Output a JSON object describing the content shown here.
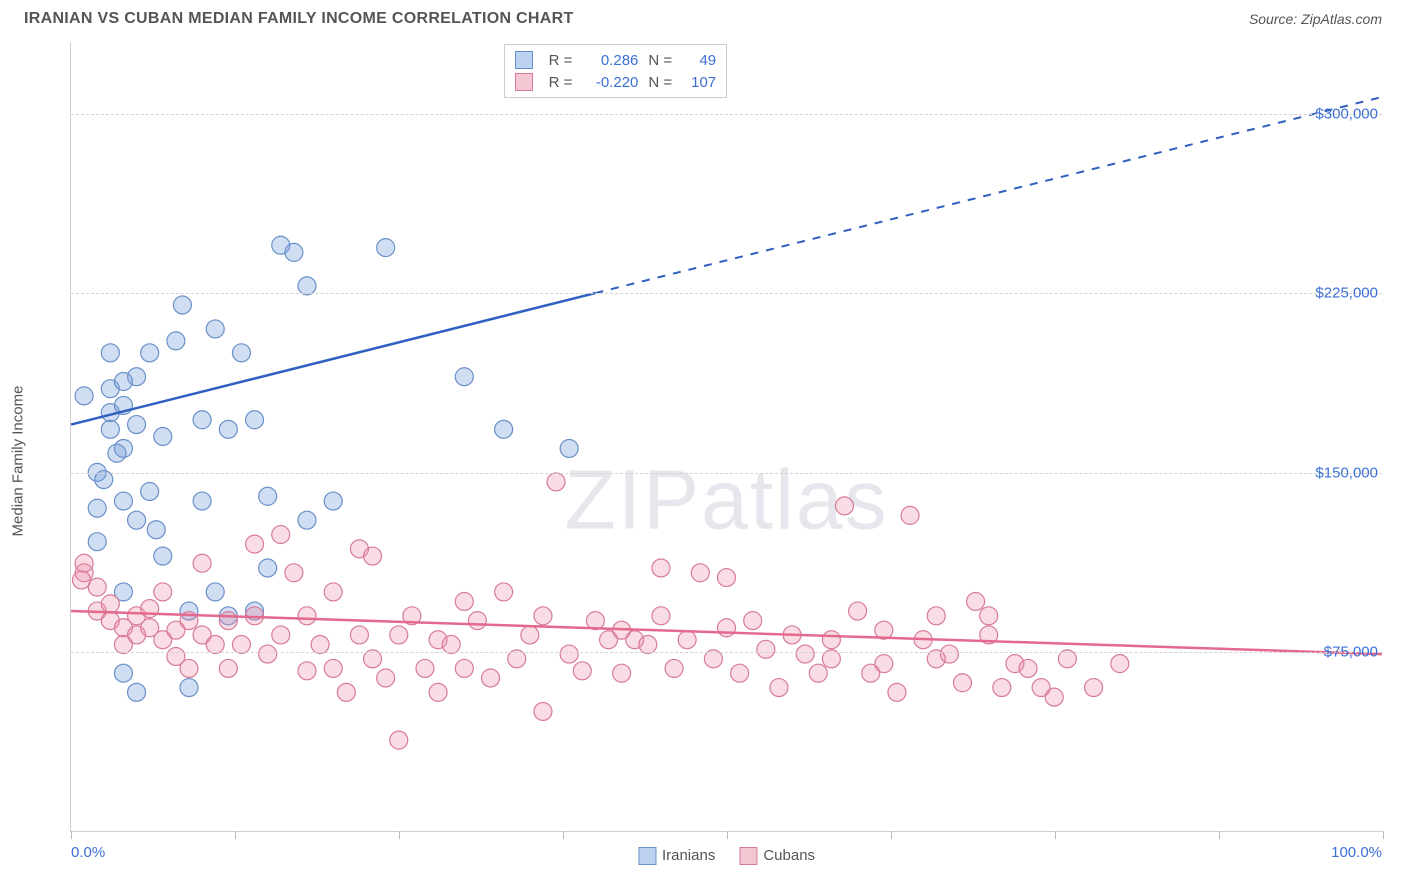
{
  "title": "IRANIAN VS CUBAN MEDIAN FAMILY INCOME CORRELATION CHART",
  "source_label": "Source: ZipAtlas.com",
  "watermark": {
    "bold": "ZIP",
    "rest": "atlas"
  },
  "chart": {
    "type": "scatter",
    "background_color": "#ffffff",
    "grid_color": "#d4d4d4",
    "axis_color": "#cfcfcf",
    "ylabel": "Median Family Income",
    "ylabel_color": "#555555",
    "ylabel_fontsize": 15,
    "xlim": [
      0,
      100
    ],
    "ylim": [
      0,
      330000
    ],
    "ytick_values": [
      75000,
      150000,
      225000,
      300000
    ],
    "ytick_labels": [
      "$75,000",
      "$150,000",
      "$225,000",
      "$300,000"
    ],
    "ytick_color": "#3b6fd6",
    "xtick_values": [
      0,
      12.5,
      25,
      37.5,
      50,
      62.5,
      75,
      87.5,
      100
    ],
    "xaxis_end_labels": {
      "left": "0.0%",
      "right": "100.0%",
      "color": "#3b6fd6"
    },
    "series": [
      {
        "name": "Iranians",
        "marker_fill": "rgba(120,160,220,0.35)",
        "marker_stroke": "#6a90c8",
        "swatch_fill": "#bcd2ef",
        "swatch_border": "#6a90c8",
        "line_color": "#2f5fc0",
        "R": "0.286",
        "N": "49",
        "trend": {
          "x1": 0,
          "y1": 170000,
          "x2_solid": 40,
          "y2_solid": 225000,
          "x2": 100,
          "y2": 307000
        },
        "marker_radius": 9,
        "points": [
          [
            4,
            100000
          ],
          [
            2,
            135000
          ],
          [
            2,
            150000
          ],
          [
            3,
            168000
          ],
          [
            3,
            175000
          ],
          [
            3,
            185000
          ],
          [
            4,
            160000
          ],
          [
            4,
            178000
          ],
          [
            5,
            170000
          ],
          [
            5,
            190000
          ],
          [
            8.5,
            220000
          ],
          [
            6,
            200000
          ],
          [
            6,
            142000
          ],
          [
            7,
            165000
          ],
          [
            7,
            115000
          ],
          [
            8,
            205000
          ],
          [
            9,
            92000
          ],
          [
            4,
            138000
          ],
          [
            4,
            188000
          ],
          [
            5,
            130000
          ],
          [
            3,
            200000
          ],
          [
            11,
            210000
          ],
          [
            6.5,
            126000
          ],
          [
            2,
            121000
          ],
          [
            1,
            182000
          ],
          [
            2.5,
            147000
          ],
          [
            3.5,
            158000
          ],
          [
            10,
            172000
          ],
          [
            10,
            138000
          ],
          [
            12,
            168000
          ],
          [
            12,
            90000
          ],
          [
            13,
            200000
          ],
          [
            14,
            172000
          ],
          [
            16,
            245000
          ],
          [
            17,
            242000
          ],
          [
            18,
            130000
          ],
          [
            15,
            140000
          ],
          [
            15,
            110000
          ],
          [
            5,
            58000
          ],
          [
            9,
            60000
          ],
          [
            20,
            138000
          ],
          [
            18,
            228000
          ],
          [
            24,
            244000
          ],
          [
            30,
            190000
          ],
          [
            33,
            168000
          ],
          [
            38,
            160000
          ],
          [
            14,
            92000
          ],
          [
            11,
            100000
          ],
          [
            4,
            66000
          ]
        ]
      },
      {
        "name": "Cubans",
        "marker_fill": "rgba(235,140,165,0.30)",
        "marker_stroke": "#d87b98",
        "swatch_fill": "#f3c7d2",
        "swatch_border": "#d87b98",
        "line_color": "#e36a8e",
        "R": "-0.220",
        "N": "107",
        "trend": {
          "x1": 0,
          "y1": 92000,
          "x2_solid": 100,
          "y2_solid": 74000,
          "x2": 100,
          "y2": 74000
        },
        "marker_radius": 9,
        "points": [
          [
            1,
            108000
          ],
          [
            1,
            112000
          ],
          [
            0.8,
            105000
          ],
          [
            2,
            102000
          ],
          [
            2,
            92000
          ],
          [
            3,
            88000
          ],
          [
            3,
            95000
          ],
          [
            4,
            85000
          ],
          [
            4,
            78000
          ],
          [
            5,
            90000
          ],
          [
            5,
            82000
          ],
          [
            6,
            85000
          ],
          [
            6,
            93000
          ],
          [
            7,
            80000
          ],
          [
            7,
            100000
          ],
          [
            8,
            84000
          ],
          [
            8,
            73000
          ],
          [
            9,
            88000
          ],
          [
            9,
            68000
          ],
          [
            10,
            82000
          ],
          [
            10,
            112000
          ],
          [
            11,
            78000
          ],
          [
            12,
            88000
          ],
          [
            12,
            68000
          ],
          [
            13,
            78000
          ],
          [
            14,
            90000
          ],
          [
            14,
            120000
          ],
          [
            15,
            74000
          ],
          [
            16,
            82000
          ],
          [
            16,
            124000
          ],
          [
            17,
            108000
          ],
          [
            18,
            67000
          ],
          [
            18,
            90000
          ],
          [
            19,
            78000
          ],
          [
            20,
            100000
          ],
          [
            20,
            68000
          ],
          [
            21,
            58000
          ],
          [
            22,
            82000
          ],
          [
            22,
            118000
          ],
          [
            23,
            115000
          ],
          [
            23,
            72000
          ],
          [
            24,
            64000
          ],
          [
            25,
            82000
          ],
          [
            25,
            38000
          ],
          [
            26,
            90000
          ],
          [
            27,
            68000
          ],
          [
            28,
            58000
          ],
          [
            28,
            80000
          ],
          [
            29,
            78000
          ],
          [
            30,
            96000
          ],
          [
            30,
            68000
          ],
          [
            31,
            88000
          ],
          [
            32,
            64000
          ],
          [
            33,
            100000
          ],
          [
            34,
            72000
          ],
          [
            35,
            82000
          ],
          [
            36,
            90000
          ],
          [
            36,
            50000
          ],
          [
            37,
            146000
          ],
          [
            38,
            74000
          ],
          [
            39,
            67000
          ],
          [
            40,
            88000
          ],
          [
            41,
            80000
          ],
          [
            42,
            84000
          ],
          [
            42,
            66000
          ],
          [
            43,
            80000
          ],
          [
            44,
            78000
          ],
          [
            45,
            90000
          ],
          [
            45,
            110000
          ],
          [
            46,
            68000
          ],
          [
            47,
            80000
          ],
          [
            48,
            108000
          ],
          [
            49,
            72000
          ],
          [
            50,
            85000
          ],
          [
            50,
            106000
          ],
          [
            51,
            66000
          ],
          [
            52,
            88000
          ],
          [
            53,
            76000
          ],
          [
            54,
            60000
          ],
          [
            55,
            82000
          ],
          [
            56,
            74000
          ],
          [
            57,
            66000
          ],
          [
            58,
            80000
          ],
          [
            59,
            136000
          ],
          [
            60,
            92000
          ],
          [
            61,
            66000
          ],
          [
            62,
            84000
          ],
          [
            63,
            58000
          ],
          [
            64,
            132000
          ],
          [
            65,
            80000
          ],
          [
            66,
            90000
          ],
          [
            67,
            74000
          ],
          [
            68,
            62000
          ],
          [
            69,
            96000
          ],
          [
            70,
            82000
          ],
          [
            71,
            60000
          ],
          [
            72,
            70000
          ],
          [
            73,
            68000
          ],
          [
            74,
            60000
          ],
          [
            75,
            56000
          ],
          [
            76,
            72000
          ],
          [
            78,
            60000
          ],
          [
            80,
            70000
          ],
          [
            70,
            90000
          ],
          [
            66,
            72000
          ],
          [
            62,
            70000
          ],
          [
            58,
            72000
          ]
        ]
      }
    ],
    "top_legend_left_pct": 33,
    "top_legend_value_color": "#3b6fd6"
  },
  "bottom_legend": [
    {
      "label": "Iranians",
      "series": 0
    },
    {
      "label": "Cubans",
      "series": 1
    }
  ]
}
